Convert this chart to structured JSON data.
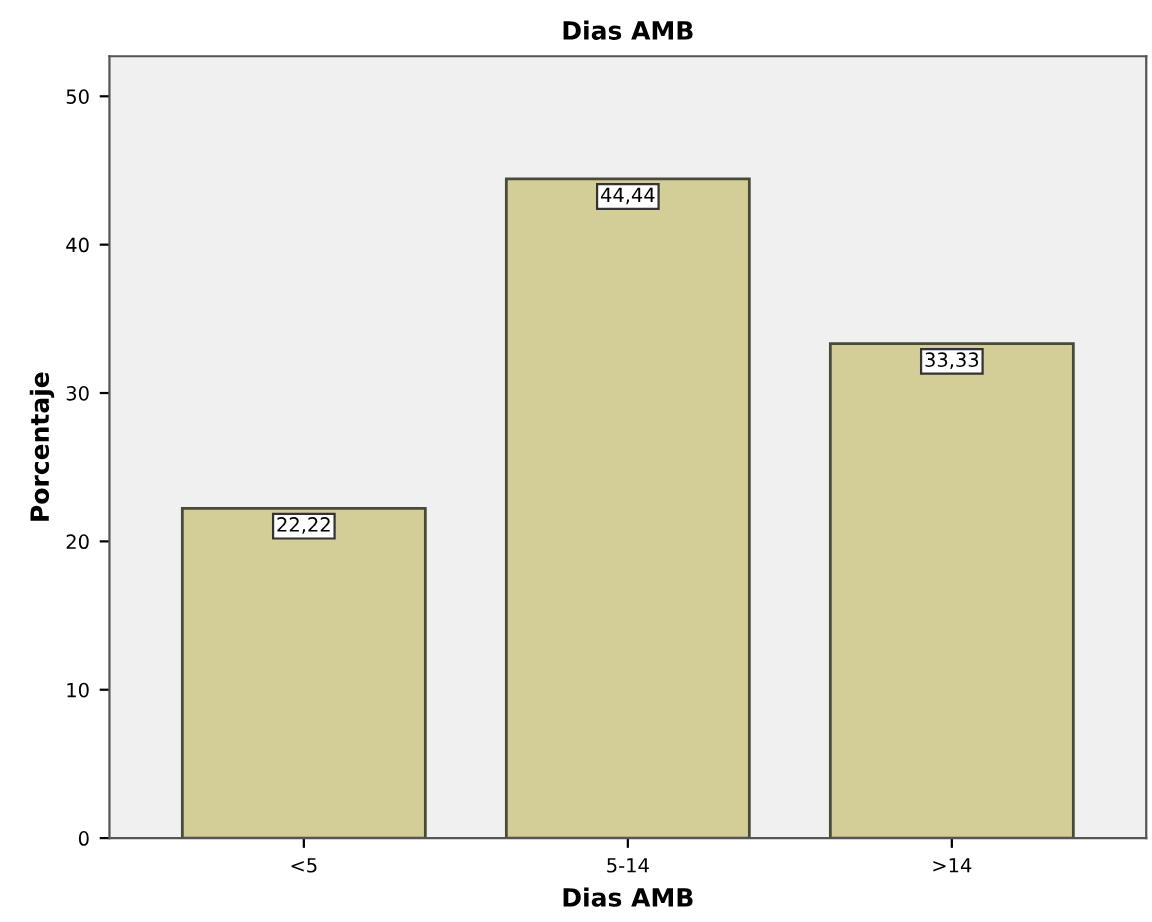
{
  "chart_data": {
    "type": "bar",
    "title": "Dias AMB",
    "xlabel": "Dias AMB",
    "ylabel": "Porcentaje",
    "categories": [
      "<5",
      "5-14",
      ">14"
    ],
    "values": [
      22.22,
      44.44,
      33.33
    ],
    "value_labels": [
      "22,22",
      "44,44",
      "33,33"
    ],
    "color": "#d3ce97",
    "ylim": [
      0,
      52.7
    ],
    "yticks": [
      0,
      10,
      20,
      30,
      40,
      50
    ],
    "grid": false,
    "legend": false
  }
}
